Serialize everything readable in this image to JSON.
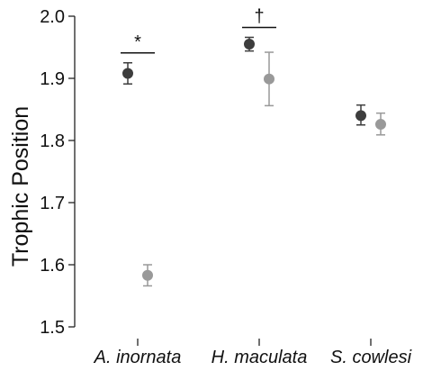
{
  "chart_data": {
    "type": "scatter",
    "title": "",
    "xlabel": "",
    "ylabel": "Trophic Position",
    "ylim": [
      1.5,
      2.0
    ],
    "yticks": [
      "1.5",
      "1.6",
      "1.7",
      "1.8",
      "1.9",
      "2.0"
    ],
    "grid": false,
    "categories": [
      "A. inornata",
      "H. maculata",
      "S. cowlesi"
    ],
    "series": [
      {
        "color": "#3d3d3d",
        "values": [
          1.908,
          1.955,
          1.84
        ],
        "error_low": [
          1.891,
          1.944,
          1.825
        ],
        "error_high": [
          1.925,
          1.966,
          1.857
        ]
      },
      {
        "color": "#999999",
        "values": [
          1.583,
          1.899,
          1.826
        ],
        "error_low": [
          1.566,
          1.856,
          1.809
        ],
        "error_high": [
          1.6,
          1.942,
          1.844
        ]
      }
    ],
    "annotations": [
      {
        "category": "A. inornata",
        "text": "*"
      },
      {
        "category": "H. maculata",
        "text": "†"
      }
    ]
  }
}
